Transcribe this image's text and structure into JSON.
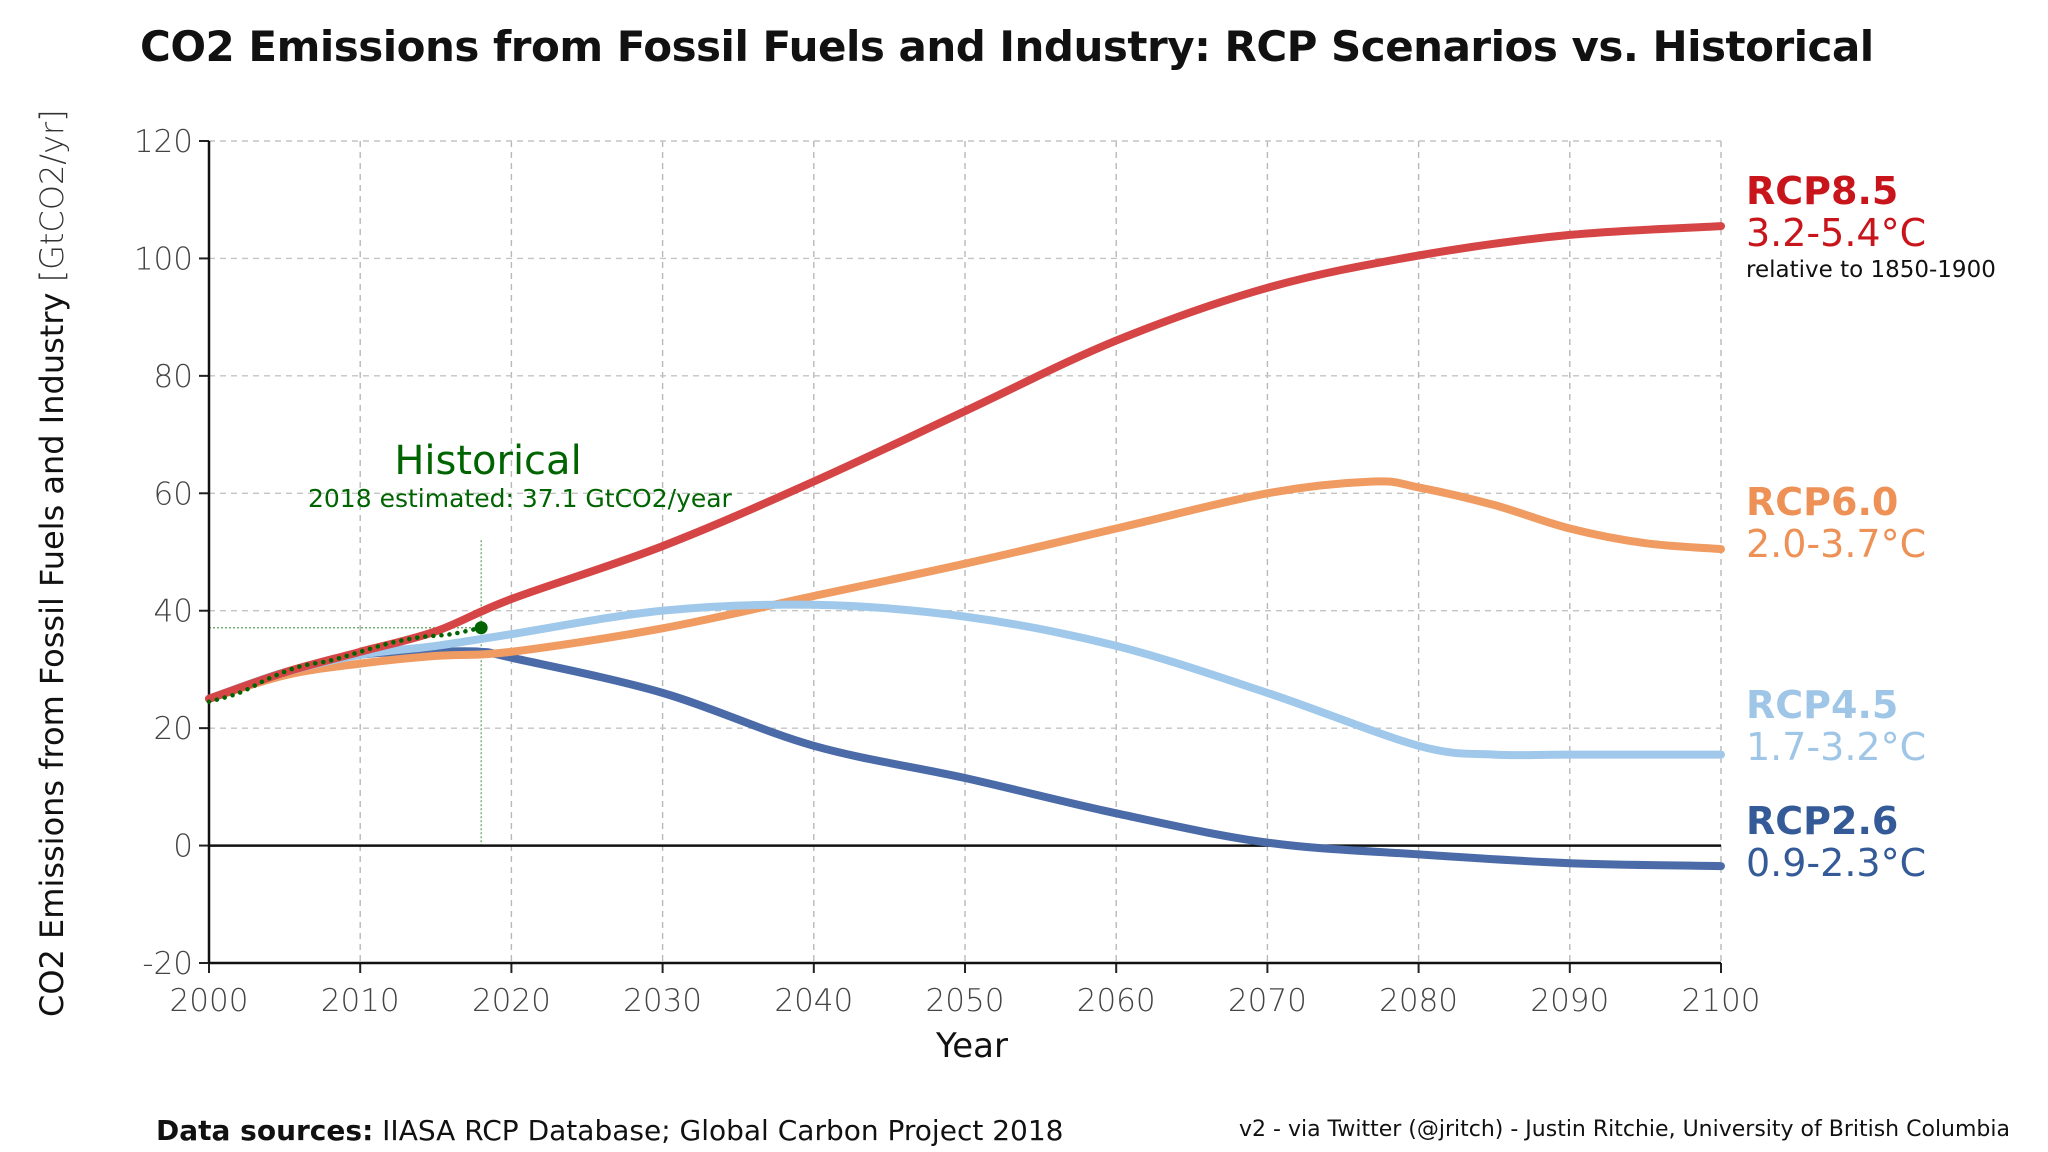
{
  "title": "CO2 Emissions from Fossil Fuels and Industry: RCP Scenarios vs. Historical",
  "footer": {
    "sources_label": "Data sources:",
    "sources_text": "IIASA RCP Database; Global Carbon Project 2018",
    "credit": "v2 - via Twitter (@jritch) - Justin Ritchie, University of British Columbia"
  },
  "annotations": {
    "historical_title": "Historical",
    "historical_note": "2018 estimated: 37.1 GtCO2/year",
    "relative_note": "relative to 1850-1900"
  },
  "colors": {
    "rcp85": "#d64545",
    "rcp60": "#ef9b62",
    "rcp45": "#9fc8ea",
    "rcp26": "#4a6aa8",
    "historical": "#006400"
  },
  "label_colors": {
    "rcp85": "#c8151b",
    "rcp60": "#ee9156",
    "rcp45": "#9fc6e6",
    "rcp26": "#355a98"
  },
  "chart_data": {
    "type": "line",
    "title": "CO2 Emissions from Fossil Fuels and Industry: RCP Scenarios vs. Historical",
    "xlabel": "Year",
    "ylabel": "CO2 Emissions from Fossil Fuels and Industry",
    "ylabel_unit": "[GtCO2/yr]",
    "xlim": [
      2000,
      2100
    ],
    "ylim": [
      -20,
      120
    ],
    "xticks": [
      "2000",
      "2010",
      "2020",
      "2030",
      "2040",
      "2050",
      "2060",
      "2070",
      "2080",
      "2090",
      "2100"
    ],
    "yticks": [
      "-20",
      "0",
      "20",
      "40",
      "60",
      "80",
      "100",
      "120"
    ],
    "grid": true,
    "series": [
      {
        "key": "rcp85",
        "name": "RCP8.5",
        "range": "3.2-5.4°C",
        "x": [
          2000,
          2005,
          2010,
          2015,
          2020,
          2030,
          2040,
          2050,
          2060,
          2070,
          2080,
          2090,
          2100
        ],
        "y": [
          25,
          29.5,
          33,
          36.5,
          42,
          51,
          62,
          74,
          86,
          95,
          100.5,
          104,
          105.5
        ]
      },
      {
        "key": "rcp60",
        "name": "RCP6.0",
        "range": "2.0-3.7°C",
        "x": [
          2000,
          2005,
          2010,
          2015,
          2020,
          2030,
          2040,
          2050,
          2060,
          2070,
          2077,
          2080,
          2085,
          2090,
          2095,
          2100
        ],
        "y": [
          25,
          29,
          31,
          32.3,
          33,
          37,
          42.5,
          48,
          54,
          60,
          62,
          61,
          58,
          54,
          51.5,
          50.5
        ]
      },
      {
        "key": "rcp45",
        "name": "RCP4.5",
        "range": "1.7-3.2°C",
        "x": [
          2000,
          2005,
          2010,
          2015,
          2020,
          2030,
          2040,
          2050,
          2060,
          2070,
          2080,
          2085,
          2090,
          2100
        ],
        "y": [
          25,
          29.5,
          32.5,
          34,
          36,
          40,
          41,
          39,
          34,
          26,
          17,
          15.5,
          15.5,
          15.5
        ]
      },
      {
        "key": "rcp26",
        "name": "RCP2.6",
        "range": "0.9-2.3°C",
        "x": [
          2000,
          2005,
          2010,
          2015,
          2018,
          2020,
          2030,
          2040,
          2050,
          2060,
          2070,
          2080,
          2090,
          2100
        ],
        "y": [
          25,
          29.5,
          32.5,
          33,
          33,
          32,
          26,
          17,
          11.5,
          5.5,
          0.5,
          -1.5,
          -3,
          -3.5
        ]
      },
      {
        "key": "historical",
        "name": "Historical",
        "x": [
          2000,
          2002,
          2004,
          2006,
          2008,
          2010,
          2012,
          2014,
          2016,
          2018
        ],
        "y": [
          24.5,
          26,
          28.5,
          30.5,
          31.5,
          33,
          34.5,
          35.5,
          36,
          37.1
        ]
      }
    ]
  }
}
